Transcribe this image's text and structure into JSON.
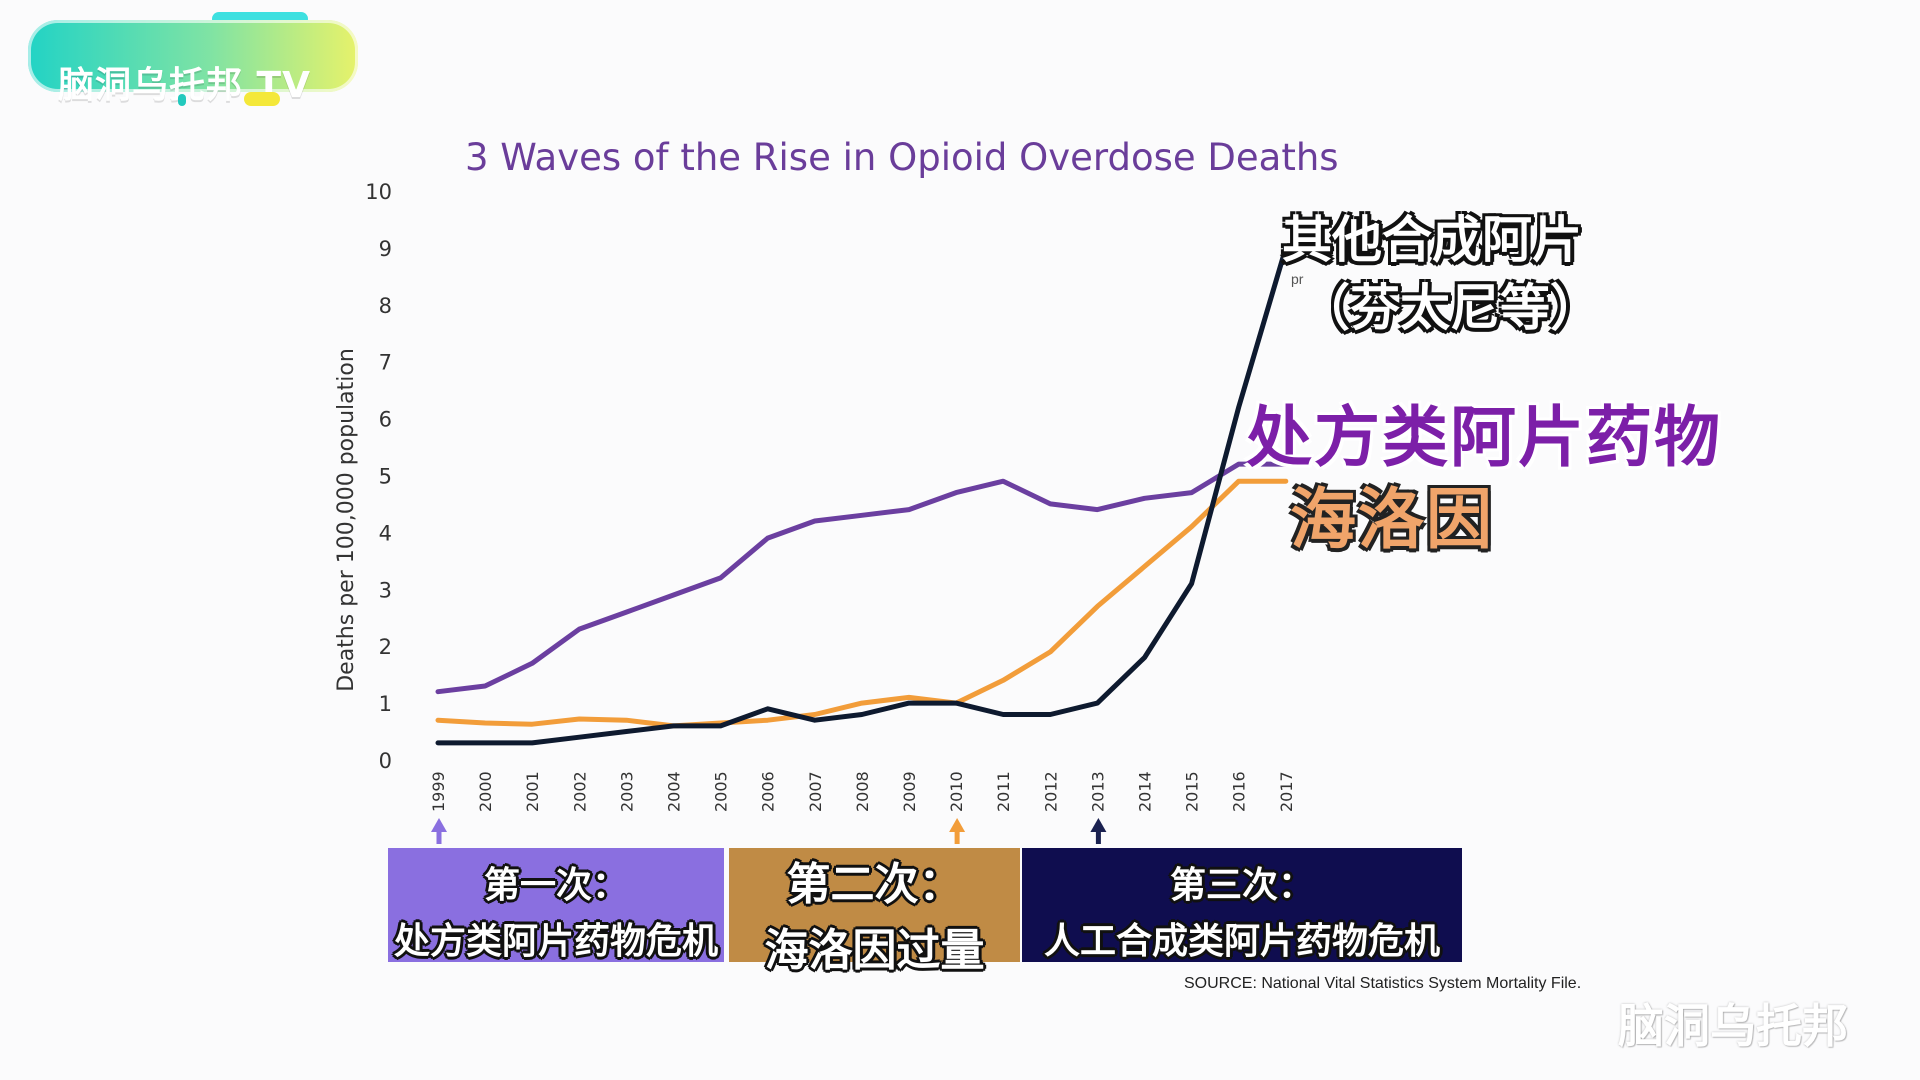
{
  "logo": {
    "text": "脑洞乌托邦 TV",
    "colors": [
      "#22d3c5",
      "#7fe3a4",
      "#e7f26a"
    ]
  },
  "title": "3 Waves of the Rise in Opioid Overdose Deaths",
  "callouts": {
    "fentanyl_line1": "其他合成阿片",
    "fentanyl_line2": "（芬太尼等）",
    "rx": "处方类阿片药物",
    "heroin": "海洛因",
    "partial_text": "pr"
  },
  "waves": [
    {
      "line1": "第一次：",
      "line2": "处方类阿片药物危机",
      "color": "#8a6fe0",
      "marker_year": "1999"
    },
    {
      "line1": "第二次：",
      "line2": "海洛因过量",
      "color": "#c08b45",
      "marker_year": "2010"
    },
    {
      "line1": "第三次：",
      "line2": "人工合成类阿片药物危机",
      "color": "#0f0d4f",
      "marker_year": "2013"
    }
  ],
  "source": "SOURCE: National Vital Statistics System Mortality File.",
  "watermark": "脑洞乌托邦",
  "chart_data": {
    "type": "line",
    "title": "3 Waves of the Rise in Opioid Overdose Deaths",
    "xlabel": "",
    "ylabel": "Deaths per 100,000 population",
    "ylim": [
      0,
      10
    ],
    "yticks": [
      "0",
      "1",
      "2",
      "3",
      "4",
      "5",
      "6",
      "7",
      "8",
      "9",
      "10"
    ],
    "categories": [
      "1999",
      "2000",
      "2001",
      "2002",
      "2003",
      "2004",
      "2005",
      "2006",
      "2007",
      "2008",
      "2009",
      "2010",
      "2011",
      "2012",
      "2013",
      "2014",
      "2015",
      "2016",
      "2017"
    ],
    "grid": false,
    "series": [
      {
        "color": "#6b3fa0",
        "values": [
          1.2,
          1.3,
          1.7,
          2.3,
          2.6,
          2.9,
          3.2,
          3.9,
          4.2,
          4.3,
          4.4,
          4.7,
          4.9,
          4.5,
          4.4,
          4.6,
          4.7,
          5.2,
          5.2
        ]
      },
      {
        "color": "#f29d3a",
        "values": [
          0.7,
          0.65,
          0.63,
          0.72,
          0.7,
          0.6,
          0.65,
          0.7,
          0.8,
          1.0,
          1.1,
          1.0,
          1.4,
          1.9,
          2.7,
          3.4,
          4.1,
          4.9,
          4.9
        ]
      },
      {
        "color": "#0e1a2f",
        "values": [
          0.3,
          0.3,
          0.3,
          0.4,
          0.5,
          0.6,
          0.6,
          0.9,
          0.7,
          0.8,
          1.0,
          1.0,
          0.8,
          0.8,
          1.0,
          1.8,
          3.1,
          6.2,
          9.0
        ]
      }
    ],
    "markers": [
      {
        "year": "1999",
        "color": "#8a6fe0"
      },
      {
        "year": "2010",
        "color": "#f29d3a"
      },
      {
        "year": "2013",
        "color": "#1a2150"
      }
    ]
  }
}
